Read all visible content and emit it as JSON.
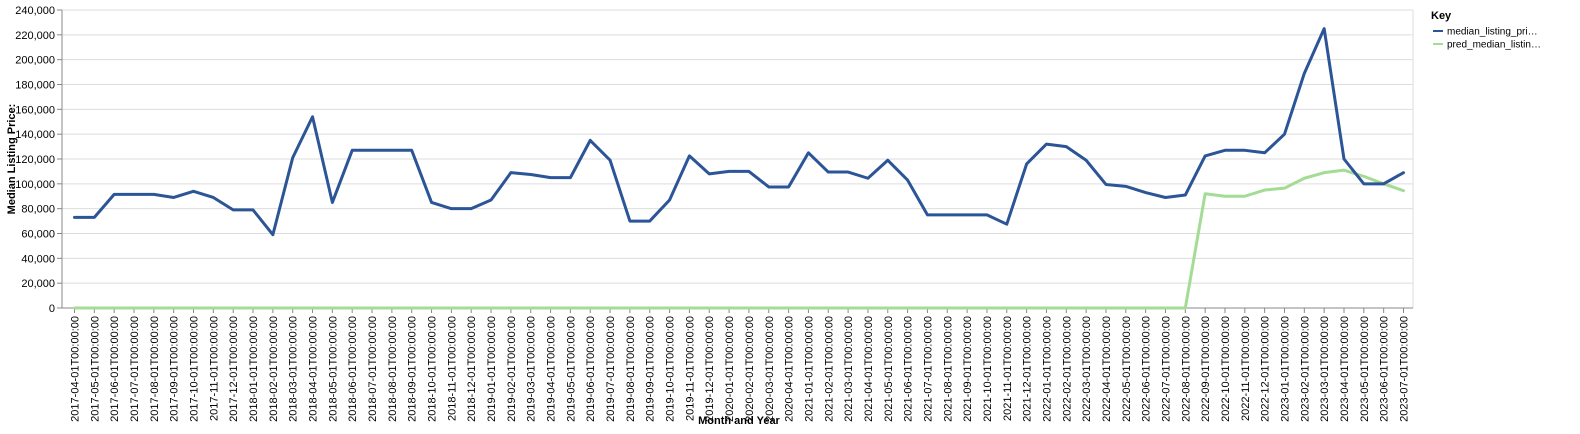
{
  "chart_data": {
    "type": "line",
    "xlabel": "Month and Year",
    "ylabel": "Median Listing Price:",
    "ylim": [
      0,
      240000
    ],
    "yticks": [
      0,
      20000,
      40000,
      60000,
      80000,
      100000,
      120000,
      140000,
      160000,
      180000,
      200000,
      220000,
      240000
    ],
    "ytick_labels": [
      "0",
      "20,000",
      "40,000",
      "60,000",
      "80,000",
      "100,000",
      "120,000",
      "140,000",
      "160,000",
      "180,000",
      "200,000",
      "220,000",
      "240,000"
    ],
    "grid": true,
    "legend": {
      "title": "Key",
      "placement": "right",
      "entries": [
        "median_listing_pri…",
        "pred_median_listin…"
      ]
    },
    "x": [
      "2017-04-01T00:00:00",
      "2017-05-01T00:00:00",
      "2017-06-01T00:00:00",
      "2017-07-01T00:00:00",
      "2017-08-01T00:00:00",
      "2017-09-01T00:00:00",
      "2017-10-01T00:00:00",
      "2017-11-01T00:00:00",
      "2017-12-01T00:00:00",
      "2018-01-01T00:00:00",
      "2018-02-01T00:00:00",
      "2018-03-01T00:00:00",
      "2018-04-01T00:00:00",
      "2018-05-01T00:00:00",
      "2018-06-01T00:00:00",
      "2018-07-01T00:00:00",
      "2018-08-01T00:00:00",
      "2018-09-01T00:00:00",
      "2018-10-01T00:00:00",
      "2018-11-01T00:00:00",
      "2018-12-01T00:00:00",
      "2019-01-01T00:00:00",
      "2019-02-01T00:00:00",
      "2019-03-01T00:00:00",
      "2019-04-01T00:00:00",
      "2019-05-01T00:00:00",
      "2019-06-01T00:00:00",
      "2019-07-01T00:00:00",
      "2019-08-01T00:00:00",
      "2019-09-01T00:00:00",
      "2019-10-01T00:00:00",
      "2019-11-01T00:00:00",
      "2019-12-01T00:00:00",
      "2020-01-01T00:00:00",
      "2020-02-01T00:00:00",
      "2020-03-01T00:00:00",
      "2020-04-01T00:00:00",
      "2021-01-01T00:00:00",
      "2021-02-01T00:00:00",
      "2021-03-01T00:00:00",
      "2021-04-01T00:00:00",
      "2021-05-01T00:00:00",
      "2021-06-01T00:00:00",
      "2021-07-01T00:00:00",
      "2021-08-01T00:00:00",
      "2021-09-01T00:00:00",
      "2021-10-01T00:00:00",
      "2021-11-01T00:00:00",
      "2021-12-01T00:00:00",
      "2022-01-01T00:00:00",
      "2022-02-01T00:00:00",
      "2022-03-01T00:00:00",
      "2022-04-01T00:00:00",
      "2022-05-01T00:00:00",
      "2022-06-01T00:00:00",
      "2022-07-01T00:00:00",
      "2022-08-01T00:00:00",
      "2022-09-01T00:00:00",
      "2022-10-01T00:00:00",
      "2022-11-01T00:00:00",
      "2022-12-01T00:00:00",
      "2023-01-01T00:00:00",
      "2023-02-01T00:00:00",
      "2023-03-01T00:00:00",
      "2023-04-01T00:00:00",
      "2023-05-01T00:00:00",
      "2023-06-01T00:00:00",
      "2023-07-01T00:00:00"
    ],
    "series": [
      {
        "name": "median_listing_pri…",
        "color": "#2b5597",
        "values": [
          73000,
          73000,
          91500,
          91500,
          91500,
          89000,
          94000,
          89000,
          79000,
          79000,
          59000,
          121000,
          154000,
          85000,
          127000,
          127000,
          127000,
          127000,
          85000,
          80000,
          80000,
          87000,
          109000,
          107500,
          105000,
          105000,
          135000,
          119000,
          70000,
          70000,
          87000,
          122500,
          108000,
          110000,
          110000,
          97500,
          97500,
          125000,
          109500,
          109500,
          104500,
          119000,
          103000,
          75000,
          75000,
          75000,
          75000,
          67500,
          116000,
          132000,
          130000,
          119000,
          99500,
          98000,
          93000,
          89000,
          91000,
          122500,
          127000,
          127000,
          125000,
          140000,
          189000,
          225000,
          120000,
          100000,
          100000,
          109000
        ]
      },
      {
        "name": "pred_median_listin…",
        "color": "#a4dc95",
        "values": [
          0,
          0,
          0,
          0,
          0,
          0,
          0,
          0,
          0,
          0,
          0,
          0,
          0,
          0,
          0,
          0,
          0,
          0,
          0,
          0,
          0,
          0,
          0,
          0,
          0,
          0,
          0,
          0,
          0,
          0,
          0,
          0,
          0,
          0,
          0,
          0,
          0,
          0,
          0,
          0,
          0,
          0,
          0,
          0,
          0,
          0,
          0,
          0,
          0,
          0,
          0,
          0,
          0,
          0,
          0,
          0,
          0,
          92000,
          90000,
          90000,
          95000,
          96500,
          104500,
          109000,
          111000,
          106000,
          100000,
          94500
        ]
      }
    ]
  }
}
